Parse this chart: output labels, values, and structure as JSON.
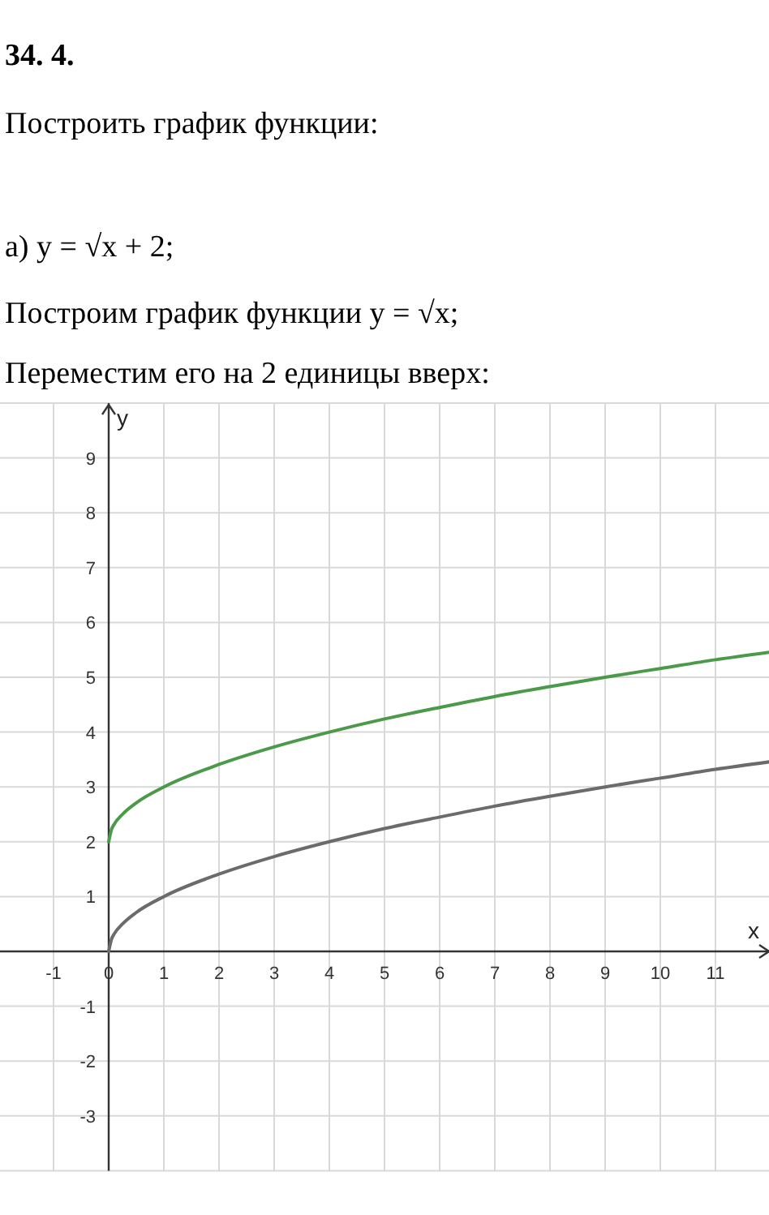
{
  "chart_data": {
    "type": "line",
    "title": "34. 4.",
    "subtitle": "Построить график функции:",
    "annotations": [
      "а) y = √x + 2;",
      "Построим график функции y = √x;",
      "Переместим его на 2 единицы вверх:"
    ],
    "xlabel": "x",
    "ylabel": "y",
    "x": [
      0,
      0.05,
      0.1,
      0.25,
      0.5,
      1,
      2,
      3,
      4,
      5,
      6,
      7,
      8,
      9,
      10,
      11,
      12
    ],
    "series": [
      {
        "color": "#4a9a4a",
        "values": [
          2,
          2.22,
          2.32,
          2.5,
          2.71,
          3,
          3.41,
          3.73,
          4,
          4.24,
          4.45,
          4.65,
          4.83,
          5,
          5.16,
          5.32,
          5.46
        ]
      },
      {
        "color": "#6b6b6b",
        "values": [
          0,
          0.22,
          0.32,
          0.5,
          0.71,
          1,
          1.41,
          1.73,
          2,
          2.24,
          2.45,
          2.65,
          2.83,
          3,
          3.16,
          3.32,
          3.46
        ]
      }
    ],
    "xlim": [
      -2,
      12
    ],
    "ylim": [
      -4,
      10
    ],
    "xticks": [
      -1,
      0,
      1,
      2,
      3,
      4,
      5,
      6,
      7,
      8,
      9,
      10,
      11
    ],
    "yticks": [
      -3,
      -2,
      -1,
      1,
      2,
      3,
      4,
      5,
      6,
      7,
      8,
      9
    ],
    "grid": true,
    "marker": "none",
    "line_style": "solid"
  }
}
